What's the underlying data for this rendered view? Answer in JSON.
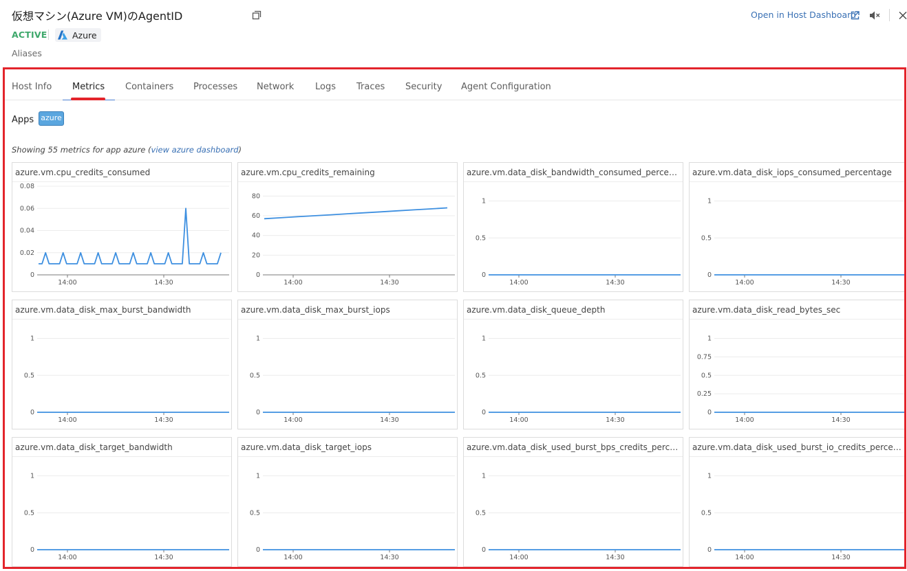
{
  "header": {
    "title": "仮想マシン(Azure VM)のAgentID",
    "open_link": "Open in Host Dashboard",
    "status": "ACTIVE",
    "cloud_label": "Azure",
    "aliases": "Aliases"
  },
  "colors": {
    "accent": "#e3242b",
    "line": "#3d8fe0",
    "status_active": "#3ea86b",
    "link": "#3970b4",
    "app_tag": "#5aa6df"
  },
  "tabs": [
    {
      "label": "Host Info",
      "active": false
    },
    {
      "label": "Metrics",
      "active": true
    },
    {
      "label": "Containers",
      "active": false
    },
    {
      "label": "Processes",
      "active": false
    },
    {
      "label": "Network",
      "active": false
    },
    {
      "label": "Logs",
      "active": false
    },
    {
      "label": "Traces",
      "active": false
    },
    {
      "label": "Security",
      "active": false
    },
    {
      "label": "Agent Configuration",
      "active": false
    }
  ],
  "apps": {
    "label": "Apps",
    "tags": [
      "azure"
    ]
  },
  "summary": {
    "prefix": "Showing 55 metrics for app azure (",
    "link": "view azure dashboard",
    "suffix": ")"
  },
  "chart_data": [
    {
      "type": "line",
      "title": "azure.vm.cpu_credits_consumed",
      "x_ticks": [
        "14:00",
        "14:30"
      ],
      "y_ticks": [
        "0",
        "0.02",
        "0.04",
        "0.06",
        "0.08"
      ],
      "ylim": [
        0,
        0.08
      ],
      "values": [
        0.01,
        0.01,
        0.02,
        0.01,
        0.01,
        0.01,
        0.01,
        0.02,
        0.01,
        0.01,
        0.01,
        0.01,
        0.02,
        0.01,
        0.01,
        0.01,
        0.01,
        0.02,
        0.01,
        0.01,
        0.01,
        0.01,
        0.02,
        0.01,
        0.01,
        0.01,
        0.01,
        0.02,
        0.01,
        0.01,
        0.01,
        0.01,
        0.02,
        0.01,
        0.01,
        0.01,
        0.01,
        0.02,
        0.01,
        0.01,
        0.01,
        0.01,
        0.06,
        0.01,
        0.01,
        0.01,
        0.01,
        0.02,
        0.01,
        0.01,
        0.01,
        0.01,
        0.02
      ]
    },
    {
      "type": "line",
      "title": "azure.vm.cpu_credits_remaining",
      "x_ticks": [
        "14:00",
        "14:30"
      ],
      "y_ticks": [
        "0",
        "20",
        "40",
        "60",
        "80"
      ],
      "ylim": [
        0,
        90
      ],
      "values": [
        57,
        58,
        59,
        60,
        61,
        62,
        63,
        64,
        65,
        66,
        67,
        68
      ]
    },
    {
      "type": "line",
      "title": "azure.vm.data_disk_bandwidth_consumed_percentage",
      "x_ticks": [
        "14:00",
        "14:30"
      ],
      "y_ticks": [
        "0",
        "0.5",
        "1"
      ],
      "ylim": [
        0,
        1.2
      ],
      "values": [
        0,
        0
      ]
    },
    {
      "type": "line",
      "title": "azure.vm.data_disk_iops_consumed_percentage",
      "x_ticks": [
        "14:00",
        "14:30"
      ],
      "y_ticks": [
        "0",
        "0.5",
        "1"
      ],
      "ylim": [
        0,
        1.2
      ],
      "values": [
        0,
        0
      ]
    },
    {
      "type": "line",
      "title": "azure.vm.data_disk_max_burst_bandwidth",
      "x_ticks": [
        "14:00",
        "14:30"
      ],
      "y_ticks": [
        "0",
        "0.5",
        "1"
      ],
      "ylim": [
        0,
        1.2
      ],
      "values": [
        0,
        0
      ]
    },
    {
      "type": "line",
      "title": "azure.vm.data_disk_max_burst_iops",
      "x_ticks": [
        "14:00",
        "14:30"
      ],
      "y_ticks": [
        "0",
        "0.5",
        "1"
      ],
      "ylim": [
        0,
        1.2
      ],
      "values": [
        0,
        0
      ]
    },
    {
      "type": "line",
      "title": "azure.vm.data_disk_queue_depth",
      "x_ticks": [
        "14:00",
        "14:30"
      ],
      "y_ticks": [
        "0",
        "0.5",
        "1"
      ],
      "ylim": [
        0,
        1.2
      ],
      "values": [
        0,
        0
      ]
    },
    {
      "type": "line",
      "title": "azure.vm.data_disk_read_bytes_sec",
      "x_ticks": [
        "14:00",
        "14:30"
      ],
      "y_ticks": [
        "0",
        "0.25",
        "0.5",
        "0.75",
        "1"
      ],
      "ylim": [
        0,
        1.2
      ],
      "values": [
        0,
        0
      ]
    },
    {
      "type": "line",
      "title": "azure.vm.data_disk_target_bandwidth",
      "x_ticks": [
        "14:00",
        "14:30"
      ],
      "y_ticks": [
        "0",
        "0.5",
        "1"
      ],
      "ylim": [
        0,
        1.2
      ],
      "values": [
        0,
        0
      ]
    },
    {
      "type": "line",
      "title": "azure.vm.data_disk_target_iops",
      "x_ticks": [
        "14:00",
        "14:30"
      ],
      "y_ticks": [
        "0",
        "0.5",
        "1"
      ],
      "ylim": [
        0,
        1.2
      ],
      "values": [
        0,
        0
      ]
    },
    {
      "type": "line",
      "title": "azure.vm.data_disk_used_burst_bps_credits_percentage",
      "x_ticks": [
        "14:00",
        "14:30"
      ],
      "y_ticks": [
        "0",
        "0.5",
        "1"
      ],
      "ylim": [
        0,
        1.2
      ],
      "values": [
        0,
        0
      ]
    },
    {
      "type": "line",
      "title": "azure.vm.data_disk_used_burst_io_credits_percentage",
      "x_ticks": [
        "14:00",
        "14:30"
      ],
      "y_ticks": [
        "0",
        "0.5",
        "1"
      ],
      "ylim": [
        0,
        1.2
      ],
      "values": [
        0,
        0
      ]
    }
  ]
}
